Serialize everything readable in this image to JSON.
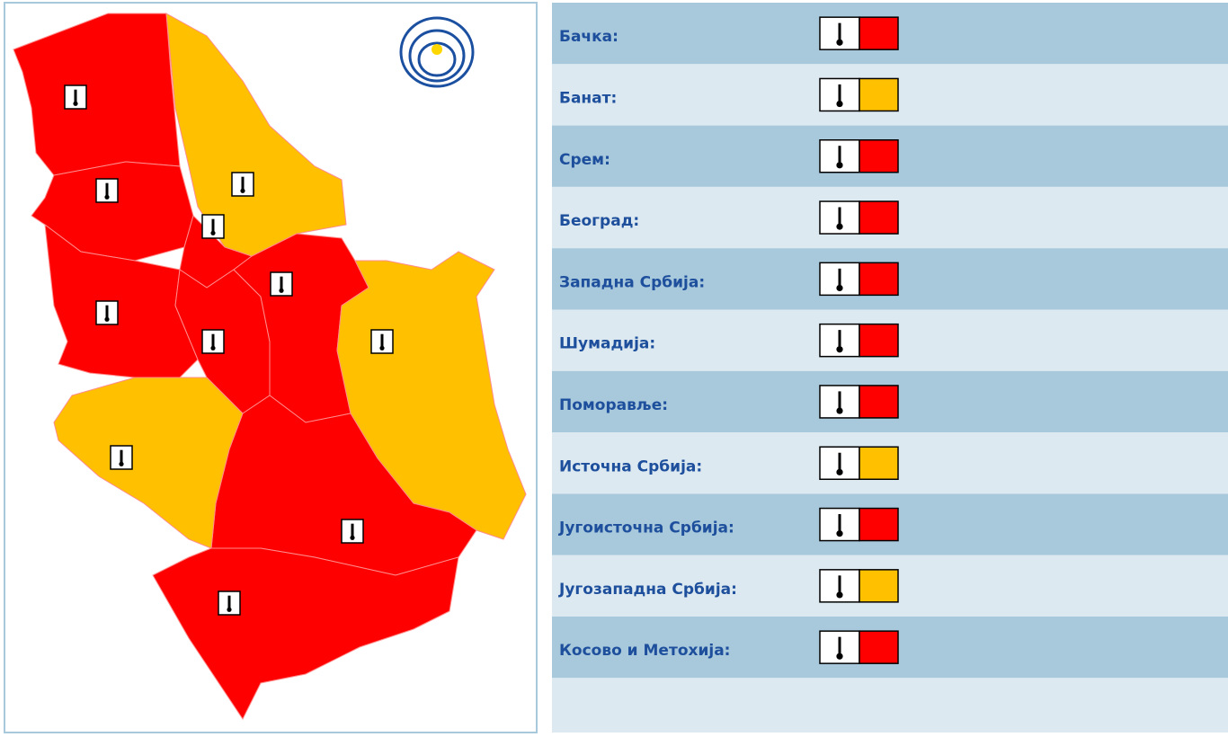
{
  "regions": [
    {
      "name": "Бачка:",
      "color": "#ff0000"
    },
    {
      "name": "Банат:",
      "color": "#ffc000"
    },
    {
      "name": "Срем:",
      "color": "#ff0000"
    },
    {
      "name": "Београд:",
      "color": "#ff0000"
    },
    {
      "name": "Западна Србија:",
      "color": "#ff0000"
    },
    {
      "name": "Шумадија:",
      "color": "#ff0000"
    },
    {
      "name": "Поморавље:",
      "color": "#ff0000"
    },
    {
      "name": "Источна Србија:",
      "color": "#ffc000"
    },
    {
      "name": "Југоисточна Србија:",
      "color": "#ff0000"
    },
    {
      "name": "Југозападна Србија:",
      "color": "#ffc000"
    },
    {
      "name": "Косово и Метохија:",
      "color": "#ff0000"
    }
  ]
}
